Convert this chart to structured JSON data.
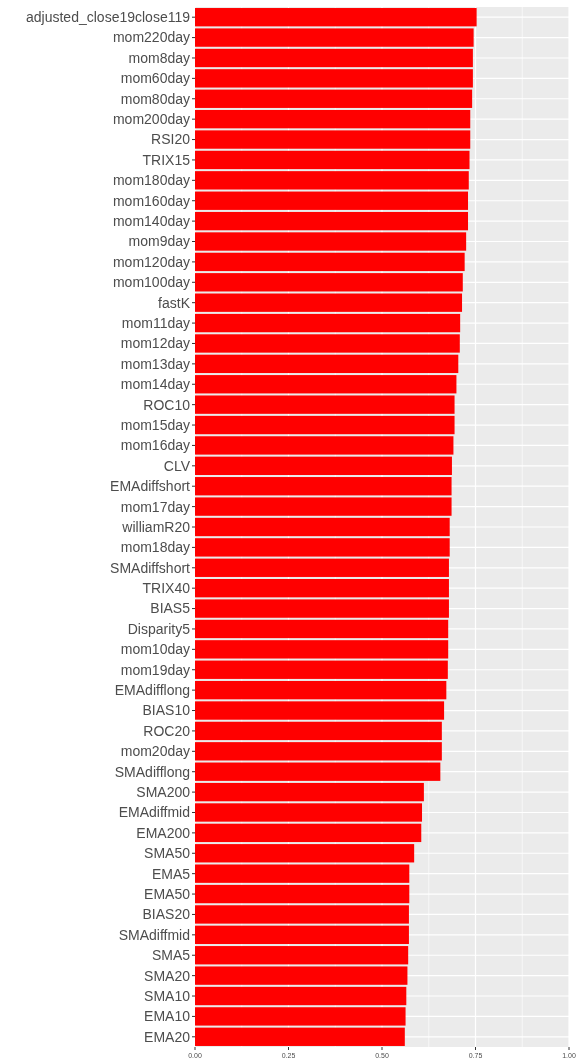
{
  "chart_data": {
    "type": "bar",
    "orientation": "horizontal",
    "categories": [
      "adjusted_close19close119",
      "mom220day",
      "mom8day",
      "mom60day",
      "mom80day",
      "mom200day",
      "RSI20",
      "TRIX15",
      "mom180day",
      "mom160day",
      "mom140day",
      "mom9day",
      "mom120day",
      "mom100day",
      "fastK",
      "mom11day",
      "mom12day",
      "mom13day",
      "mom14day",
      "ROC10",
      "mom15day",
      "mom16day",
      "CLV",
      "EMAdiffshort",
      "mom17day",
      "williamR20",
      "mom18day",
      "SMAdiffshort",
      "TRIX40",
      "BIAS5",
      "Disparity5",
      "mom10day",
      "mom19day",
      "EMAdifflong",
      "BIAS10",
      "ROC20",
      "mom20day",
      "SMAdifflong",
      "SMA200",
      "EMAdiffmid",
      "EMA200",
      "SMA50",
      "EMA5",
      "EMA50",
      "BIAS20",
      "SMAdiffmid",
      "SMA5",
      "SMA20",
      "SMA10",
      "EMA10",
      "EMA20"
    ],
    "values": [
      0.753,
      0.745,
      0.743,
      0.743,
      0.741,
      0.736,
      0.736,
      0.734,
      0.732,
      0.73,
      0.73,
      0.725,
      0.721,
      0.716,
      0.714,
      0.709,
      0.708,
      0.704,
      0.699,
      0.694,
      0.694,
      0.691,
      0.687,
      0.686,
      0.686,
      0.681,
      0.681,
      0.679,
      0.679,
      0.679,
      0.677,
      0.677,
      0.676,
      0.672,
      0.666,
      0.66,
      0.66,
      0.656,
      0.612,
      0.607,
      0.605,
      0.586,
      0.573,
      0.573,
      0.572,
      0.572,
      0.57,
      0.568,
      0.565,
      0.563,
      0.561
    ],
    "color": "#ff0000",
    "xlim": [
      0,
      1
    ],
    "xticks": [
      {
        "value": 0,
        "label": "0.00"
      },
      {
        "value": 0.25,
        "label": "0.25"
      },
      {
        "value": 0.5,
        "label": "0.50"
      },
      {
        "value": 0.75,
        "label": "0.75"
      },
      {
        "value": 1,
        "label": "1.00"
      }
    ],
    "grid": true
  }
}
